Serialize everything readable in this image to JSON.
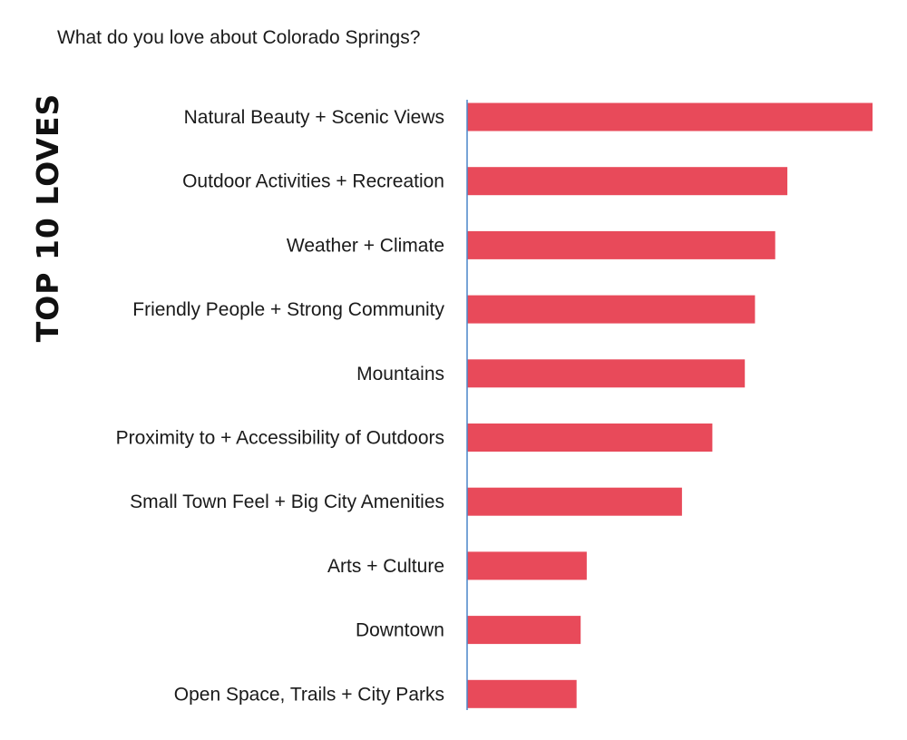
{
  "chart_data": {
    "type": "bar",
    "orientation": "horizontal",
    "title": "What do you love about Colorado Springs?",
    "side_label": "TOP 10 LOVES",
    "categories": [
      "Natural Beauty + Scenic Views",
      "Outdoor Activities + Recreation",
      "Weather + Climate",
      "Friendly People + Strong Community",
      "Mountains",
      "Proximity to + Accessibility of Outdoors",
      "Small Town Feel + Big City Amenities",
      "Arts + Culture",
      "Downtown",
      "Open Space, Trails + City Parks"
    ],
    "values": [
      100,
      79,
      76,
      71,
      68.5,
      60.5,
      53,
      29.5,
      28,
      27
    ],
    "xlim": [
      0,
      100
    ],
    "grid": false,
    "legend": "none",
    "colors": {
      "bar": "#e84a5a",
      "axis": "#4a86c8",
      "text": "#1a1a1a",
      "side_label": "#111111"
    }
  }
}
